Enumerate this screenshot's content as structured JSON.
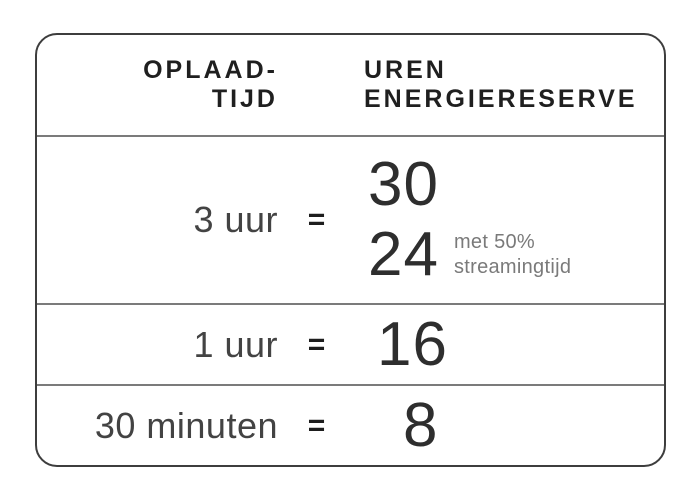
{
  "table": {
    "header": {
      "charge_time_line1": "OPLAAD-",
      "charge_time_line2": "TIJD",
      "energy_line1": "UREN",
      "energy_line2": "ENERGIERESERVE"
    },
    "rows": [
      {
        "label": "3 uur",
        "equals": "=",
        "value_primary": "30",
        "value_secondary": "24",
        "note_line1": "met 50%",
        "note_line2": "streamingtijd"
      },
      {
        "label": "1 uur",
        "equals": "=",
        "value": "16"
      },
      {
        "label": "30 minuten",
        "equals": "=",
        "value": "8"
      }
    ]
  },
  "colors": {
    "card_border": "#3d3d3d",
    "row_divider": "#7b7b7b",
    "header_text": "#1f1f1f",
    "number_text": "#2e2e2e",
    "label_text": "#434343",
    "note_text": "#7a7a7a",
    "background": "#ffffff"
  },
  "chart_data": {
    "type": "table",
    "title": "",
    "columns": [
      "Oplaad-tijd",
      "Uren energiereserve"
    ],
    "rows": [
      {
        "oplaadtijd": "3 uur",
        "uren_energiereserve": 30,
        "uren_met_50_procent_streamingtijd": 24
      },
      {
        "oplaadtijd": "1 uur",
        "uren_energiereserve": 16
      },
      {
        "oplaadtijd": "30 minuten",
        "uren_energiereserve": 8
      }
    ]
  }
}
